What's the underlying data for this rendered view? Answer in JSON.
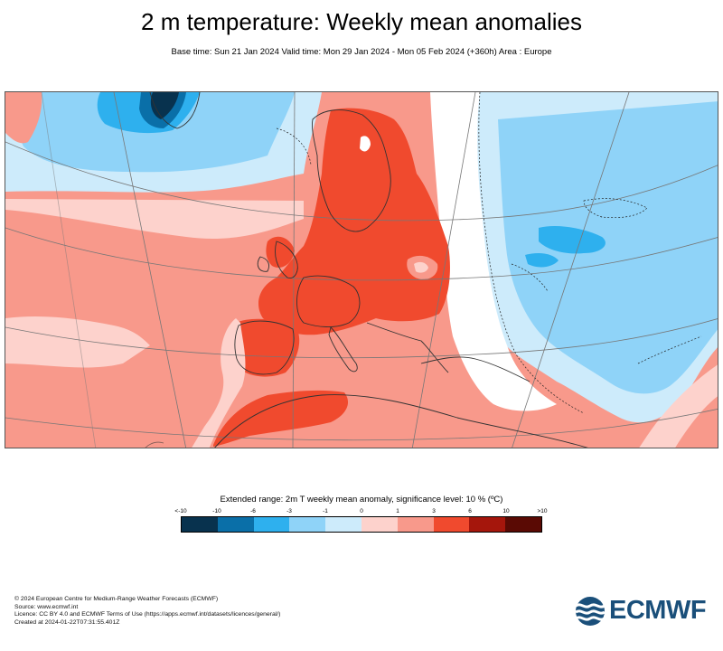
{
  "header": {
    "title": "2 m temperature: Weekly mean anomalies",
    "subtitle": "Base time: Sun 21 Jan 2024 Valid time: Mon 29 Jan 2024 - Mon 05 Feb 2024 (+360h) Area : Europe"
  },
  "map": {
    "region": "Europe",
    "colors": {
      "lt_-10": "#08324e",
      "-10_-6": "#0a6fa8",
      "-6_-3": "#2eb0ee",
      "-3_-1": "#8fd3f8",
      "-1_0": "#cdebfb",
      "0_1": "#fdd2cc",
      "1_3": "#f8998b",
      "3_6": "#f04a2e",
      "6_10": "#a5160c",
      "gt_10": "#5a0a04"
    }
  },
  "legend": {
    "title": "Extended range: 2m T weekly mean anomaly, significance level: 10 % (ºC)",
    "ticks": [
      "<-10",
      "-10",
      "-6",
      "-3",
      "-1",
      "0",
      "1",
      "3",
      "6",
      "10",
      ">10"
    ],
    "colors": [
      "#08324e",
      "#0a6fa8",
      "#2eb0ee",
      "#8fd3f8",
      "#cdebfb",
      "#fdd2cc",
      "#f8998b",
      "#f04a2e",
      "#a5160c",
      "#5a0a04"
    ]
  },
  "footer": {
    "line1": "© 2024 European Centre for Medium-Range Weather Forecasts (ECMWF)",
    "line2": "Source: www.ecmwf.int",
    "line3": "Licence: CC BY 4.0 and ECMWF Terms of Use (https://apps.ecmwf.int/datasets/licences/general/)",
    "line4": "Created at 2024-01-22T07:31:55.401Z"
  },
  "logo": {
    "text": "ECMWF",
    "icon": "ecmwf-wave-logo-icon",
    "color": "#1a4f7a"
  }
}
